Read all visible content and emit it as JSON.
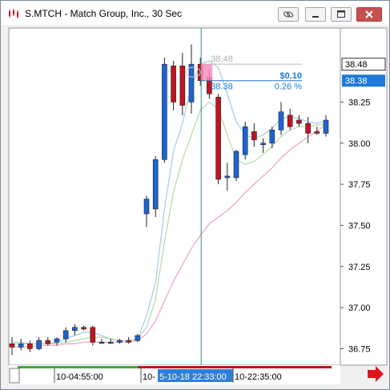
{
  "window": {
    "title": "S.MTCH - Match Group, Inc., 30 Sec",
    "icons": [
      "chart-icon",
      "link-icon",
      "minimize-icon",
      "maximize-icon",
      "close-icon"
    ]
  },
  "colors": {
    "up_candle": "#1e64d2",
    "down_candle": "#c0141e",
    "ma_fast": "#a9cfe8",
    "ma_mid": "#b9dcb0",
    "ma_slow": "#f0a8c4",
    "cursor_line": "#2f8f8f",
    "measure_blue": "#1e7ad8",
    "x_label_highlight": "#2f7fd8",
    "bottom_bar_green": "#3daa3d",
    "bottom_bar_red": "#c0141e"
  },
  "chart": {
    "measure": {
      "price_label": "38.48",
      "dollar_change": "$0.10",
      "start_label": "38.38",
      "pct_change": "0.26 %"
    },
    "price_flags": [
      "38.48",
      "38.38"
    ],
    "x_labels": [
      "10-04:55:00",
      "10-",
      "5-10-18 22:33:00",
      "10-22:35:00"
    ],
    "nav_arrow": "right-arrow-icon"
  },
  "chart_data": {
    "type": "candlestick",
    "ylim": [
      36.65,
      38.7
    ],
    "y_ticks": [
      "36.75",
      "37.00",
      "37.25",
      "37.50",
      "37.75",
      "38.00",
      "38.25"
    ],
    "candles": [
      {
        "o": 36.78,
        "h": 36.82,
        "l": 36.71,
        "c": 36.76
      },
      {
        "o": 36.76,
        "h": 36.81,
        "l": 36.74,
        "c": 36.78
      },
      {
        "o": 36.78,
        "h": 36.8,
        "l": 36.73,
        "c": 36.75
      },
      {
        "o": 36.75,
        "h": 36.82,
        "l": 36.74,
        "c": 36.8
      },
      {
        "o": 36.8,
        "h": 36.82,
        "l": 36.77,
        "c": 36.78
      },
      {
        "o": 36.79,
        "h": 36.82,
        "l": 36.77,
        "c": 36.81
      },
      {
        "o": 36.81,
        "h": 36.88,
        "l": 36.79,
        "c": 36.86
      },
      {
        "o": 36.86,
        "h": 36.9,
        "l": 36.83,
        "c": 36.88
      },
      {
        "o": 36.88,
        "h": 36.89,
        "l": 36.86,
        "c": 36.87
      },
      {
        "o": 36.88,
        "h": 36.89,
        "l": 36.77,
        "c": 36.79
      },
      {
        "o": 36.79,
        "h": 36.81,
        "l": 36.78,
        "c": 36.79
      },
      {
        "o": 36.79,
        "h": 36.81,
        "l": 36.78,
        "c": 36.79
      },
      {
        "o": 36.79,
        "h": 36.81,
        "l": 36.78,
        "c": 36.8
      },
      {
        "o": 36.8,
        "h": 36.82,
        "l": 36.78,
        "c": 36.79
      },
      {
        "o": 36.8,
        "h": 36.84,
        "l": 36.79,
        "c": 36.83
      },
      {
        "o": 37.57,
        "h": 37.68,
        "l": 37.49,
        "c": 37.66
      },
      {
        "o": 37.6,
        "h": 37.92,
        "l": 37.55,
        "c": 37.9
      },
      {
        "o": 37.9,
        "h": 38.52,
        "l": 37.88,
        "c": 38.48
      },
      {
        "o": 38.47,
        "h": 38.5,
        "l": 38.2,
        "c": 38.25
      },
      {
        "o": 38.47,
        "h": 38.55,
        "l": 38.17,
        "c": 38.23
      },
      {
        "o": 38.25,
        "h": 38.6,
        "l": 38.18,
        "c": 38.48
      },
      {
        "o": 38.48,
        "h": 38.52,
        "l": 38.35,
        "c": 38.38
      },
      {
        "o": 38.4,
        "h": 38.45,
        "l": 38.27,
        "c": 38.3
      },
      {
        "o": 38.28,
        "h": 38.3,
        "l": 37.75,
        "c": 37.78
      },
      {
        "o": 37.79,
        "h": 37.88,
        "l": 37.71,
        "c": 37.8
      },
      {
        "o": 37.79,
        "h": 37.96,
        "l": 37.77,
        "c": 37.95
      },
      {
        "o": 37.93,
        "h": 38.13,
        "l": 37.9,
        "c": 38.1
      },
      {
        "o": 38.07,
        "h": 38.12,
        "l": 37.98,
        "c": 38.02
      },
      {
        "o": 37.99,
        "h": 38.03,
        "l": 37.94,
        "c": 38.0
      },
      {
        "o": 38.0,
        "h": 38.1,
        "l": 37.97,
        "c": 38.08
      },
      {
        "o": 38.08,
        "h": 38.25,
        "l": 38.05,
        "c": 38.19
      },
      {
        "o": 38.17,
        "h": 38.21,
        "l": 38.08,
        "c": 38.1
      },
      {
        "o": 38.14,
        "h": 38.17,
        "l": 38.1,
        "c": 38.12
      },
      {
        "o": 38.12,
        "h": 38.16,
        "l": 38.0,
        "c": 38.06
      },
      {
        "o": 38.07,
        "h": 38.1,
        "l": 38.05,
        "c": 38.06
      },
      {
        "o": 38.06,
        "h": 38.17,
        "l": 38.04,
        "c": 38.14
      }
    ],
    "ma_fast": [
      36.79,
      36.79,
      36.78,
      36.78,
      36.78,
      36.79,
      36.81,
      36.83,
      36.85,
      36.85,
      36.83,
      36.81,
      36.8,
      36.8,
      36.81,
      36.95,
      37.15,
      37.6,
      37.95,
      38.12,
      38.35,
      38.48,
      38.5,
      38.46,
      38.3,
      38.13,
      38.05,
      38.03,
      38.05,
      38.09,
      38.15,
      38.16,
      38.15,
      38.13,
      38.12,
      38.14
    ],
    "ma_mid": [
      36.78,
      36.78,
      36.78,
      36.78,
      36.78,
      36.78,
      36.79,
      36.8,
      36.81,
      36.82,
      36.82,
      36.81,
      36.8,
      36.8,
      36.81,
      36.88,
      37.05,
      37.4,
      37.7,
      37.9,
      38.05,
      38.2,
      38.25,
      38.21,
      38.05,
      37.9,
      37.87,
      37.89,
      37.93,
      37.98,
      38.04,
      38.08,
      38.1,
      38.1,
      38.11,
      38.12
    ],
    "ma_slow": [
      36.76,
      36.76,
      36.76,
      36.77,
      36.77,
      36.77,
      36.78,
      36.78,
      36.79,
      36.79,
      36.79,
      36.79,
      36.79,
      36.79,
      36.8,
      36.84,
      36.92,
      37.04,
      37.16,
      37.26,
      37.36,
      37.44,
      37.51,
      37.55,
      37.59,
      37.64,
      37.7,
      37.75,
      37.8,
      37.85,
      37.91,
      37.96,
      38.0,
      38.04,
      38.07,
      38.12
    ]
  }
}
